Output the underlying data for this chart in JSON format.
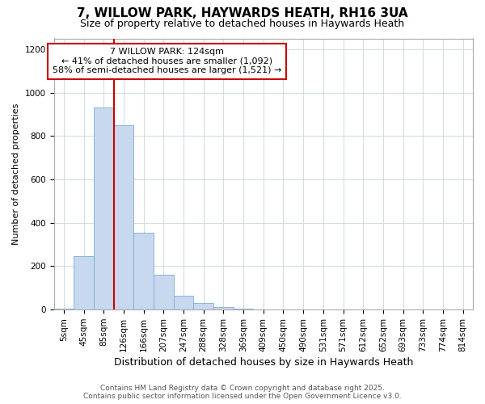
{
  "title1": "7, WILLOW PARK, HAYWARDS HEATH, RH16 3UA",
  "title2": "Size of property relative to detached houses in Haywards Heath",
  "xlabel": "Distribution of detached houses by size in Haywards Heath",
  "ylabel": "Number of detached properties",
  "categories": [
    "5sqm",
    "45sqm",
    "85sqm",
    "126sqm",
    "166sqm",
    "207sqm",
    "247sqm",
    "288sqm",
    "328sqm",
    "369sqm",
    "409sqm",
    "450sqm",
    "490sqm",
    "531sqm",
    "571sqm",
    "612sqm",
    "652sqm",
    "693sqm",
    "733sqm",
    "774sqm",
    "814sqm"
  ],
  "values": [
    5,
    248,
    930,
    848,
    353,
    160,
    65,
    30,
    13,
    5,
    1,
    0,
    0,
    0,
    0,
    0,
    0,
    0,
    0,
    0,
    0
  ],
  "bar_color": "#c8d8ee",
  "bar_edge_color": "#7aadd4",
  "marker_index": 2.5,
  "marker_color": "#cc0000",
  "annotation_title": "7 WILLOW PARK: 124sqm",
  "annotation_line1": "← 41% of detached houses are smaller (1,092)",
  "annotation_line2": "58% of semi-detached houses are larger (1,521) →",
  "annotation_box_facecolor": "#ffffff",
  "annotation_box_edgecolor": "#cc0000",
  "footer1": "Contains HM Land Registry data © Crown copyright and database right 2025.",
  "footer2": "Contains public sector information licensed under the Open Government Licence v3.0.",
  "ylim": [
    0,
    1250
  ],
  "yticks": [
    0,
    200,
    400,
    600,
    800,
    1000,
    1200
  ],
  "background_color": "#ffffff",
  "grid_color": "#d0dce8",
  "title1_fontsize": 11,
  "title2_fontsize": 9,
  "xlabel_fontsize": 9,
  "ylabel_fontsize": 8,
  "tick_fontsize": 7.5,
  "footer_fontsize": 6.5,
  "ann_fontsize": 8
}
